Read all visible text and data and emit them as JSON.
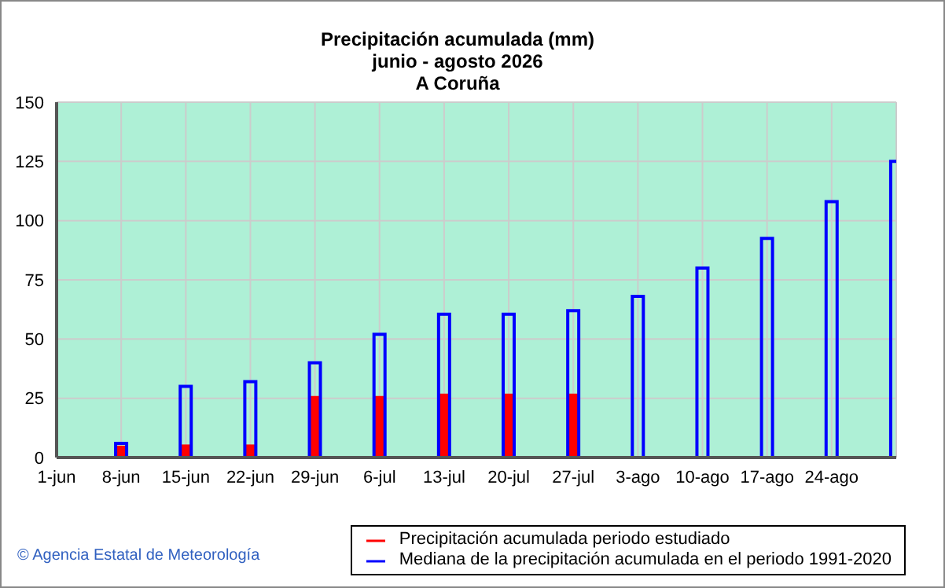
{
  "chart_data": {
    "type": "bar",
    "title": "Precipitación acumulada (mm)",
    "subtitle": "junio - agosto 2026\nA Coruña",
    "categories": [
      "1-jun",
      "8-jun",
      "15-jun",
      "22-jun",
      "29-jun",
      "6-jul",
      "13-jul",
      "20-jul",
      "27-jul",
      "3-ago",
      "10-ago",
      "17-ago",
      "24-ago",
      null
    ],
    "series": [
      {
        "name": "Precipitación acumulada periodo estudiado",
        "color": "#ff0000",
        "values": [
          null,
          5,
          5.5,
          5.5,
          26,
          26,
          27,
          27,
          27,
          null,
          null,
          null,
          null,
          null
        ]
      },
      {
        "name": "Mediana de la precipitación acumulada en el periodo 1991-2020",
        "color": "#0000ff",
        "values": [
          null,
          6,
          30,
          32,
          40,
          52,
          60.5,
          60.5,
          62,
          68,
          80,
          92.5,
          108,
          125
        ]
      }
    ],
    "ylim": [
      0,
      150
    ],
    "yticks": [
      0,
      25,
      50,
      75,
      100,
      125,
      150
    ],
    "grid": true,
    "legend": "bottom right",
    "annotations": [
      "© Agencia Estatal de Meteorología"
    ]
  }
}
